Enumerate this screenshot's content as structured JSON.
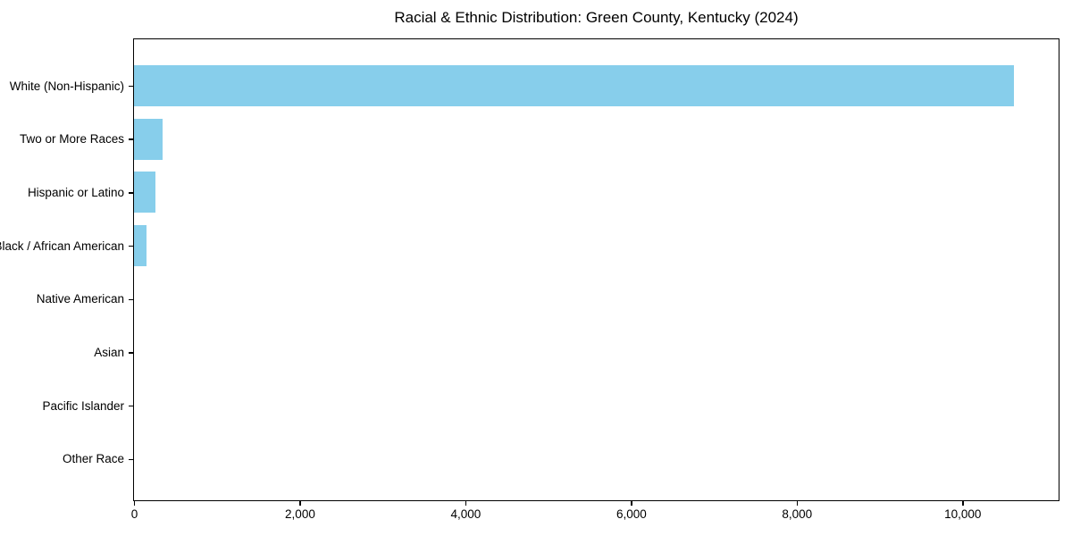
{
  "chart_data": {
    "type": "bar",
    "orientation": "horizontal",
    "title": "Racial & Ethnic Distribution: Green County, Kentucky (2024)",
    "categories": [
      "White (Non-Hispanic)",
      "Two or More Races",
      "Hispanic or Latino",
      "Black / African American",
      "Native American",
      "Asian",
      "Pacific Islander",
      "Other Race"
    ],
    "values": [
      10620,
      341,
      262,
      154,
      0,
      0,
      0,
      0
    ],
    "xlabel": "",
    "ylabel": "",
    "xlim": [
      0,
      11151
    ],
    "xticks": [
      0,
      2000,
      4000,
      6000,
      8000,
      10000
    ],
    "xtick_labels": [
      "0",
      "2,000",
      "4,000",
      "6,000",
      "8,000",
      "10,000"
    ],
    "bar_color": "#87CEEB",
    "grid": false,
    "legend": "none",
    "spines": "full-box"
  },
  "colors": {
    "bar": "#87CEEB",
    "axis": "#000000",
    "text": "#000000",
    "background": "#ffffff"
  }
}
